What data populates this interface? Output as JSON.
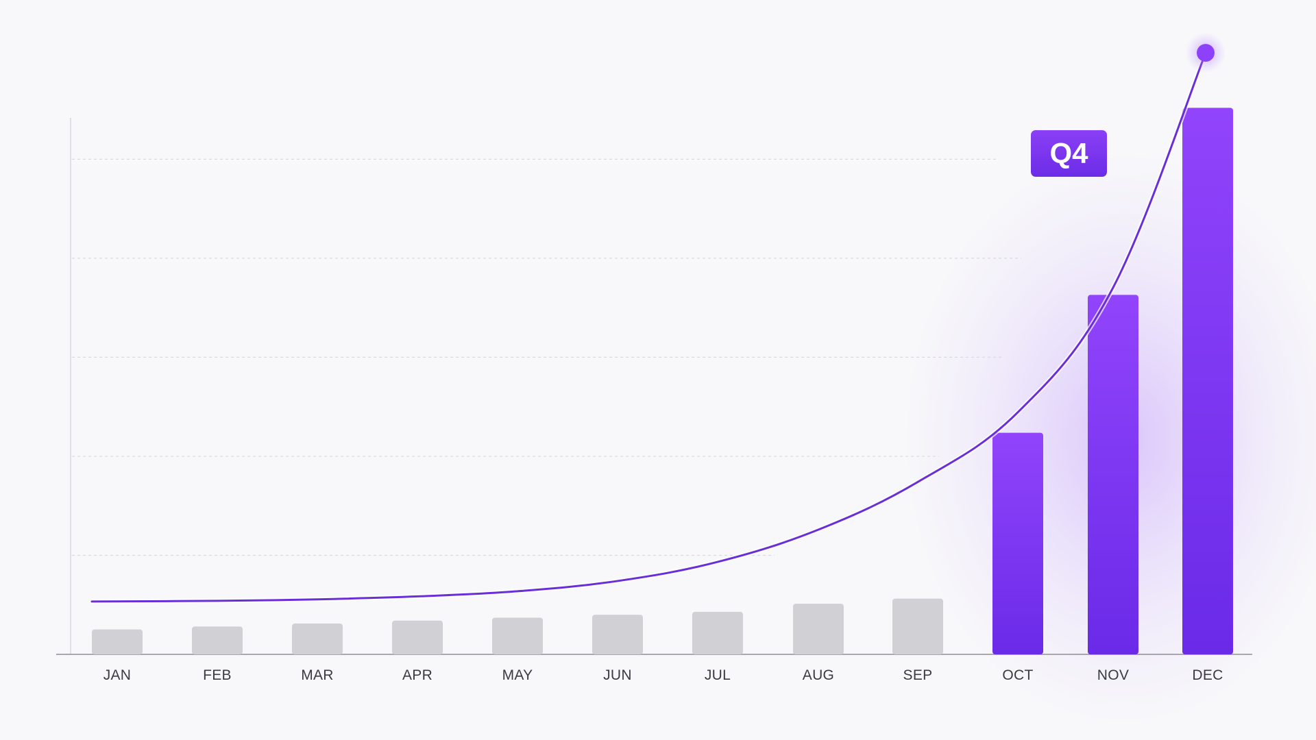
{
  "chart_data": {
    "type": "bar",
    "categories": [
      "JAN",
      "FEB",
      "MAR",
      "APR",
      "MAY",
      "JUN",
      "JUL",
      "AUG",
      "SEP",
      "OCT",
      "NOV",
      "DEC"
    ],
    "values": [
      3.4,
      3.8,
      4.2,
      4.6,
      5.0,
      5.4,
      5.8,
      6.9,
      7.6,
      30.2,
      49.0,
      74.5
    ],
    "trend_line": [
      7.2,
      7.3,
      7.5,
      7.9,
      8.6,
      10.0,
      12.6,
      17.0,
      23.5,
      33.0,
      50.0,
      82.0
    ],
    "highlight": {
      "label": "Q4",
      "categories": [
        "OCT",
        "NOV",
        "DEC"
      ]
    },
    "title": "",
    "xlabel": "",
    "ylabel": "",
    "ylim": [
      0,
      85
    ],
    "gridlines": [
      13.5,
      27,
      40.5,
      54,
      67.5
    ],
    "grid": true,
    "colors": {
      "muted_bar": "#d1d1d5",
      "accent_top": "#9144fb",
      "accent_bottom": "#6a2ae8",
      "line": "#6a2ed8",
      "badge": "#7b35ee",
      "background": "#f8f8fa"
    }
  }
}
